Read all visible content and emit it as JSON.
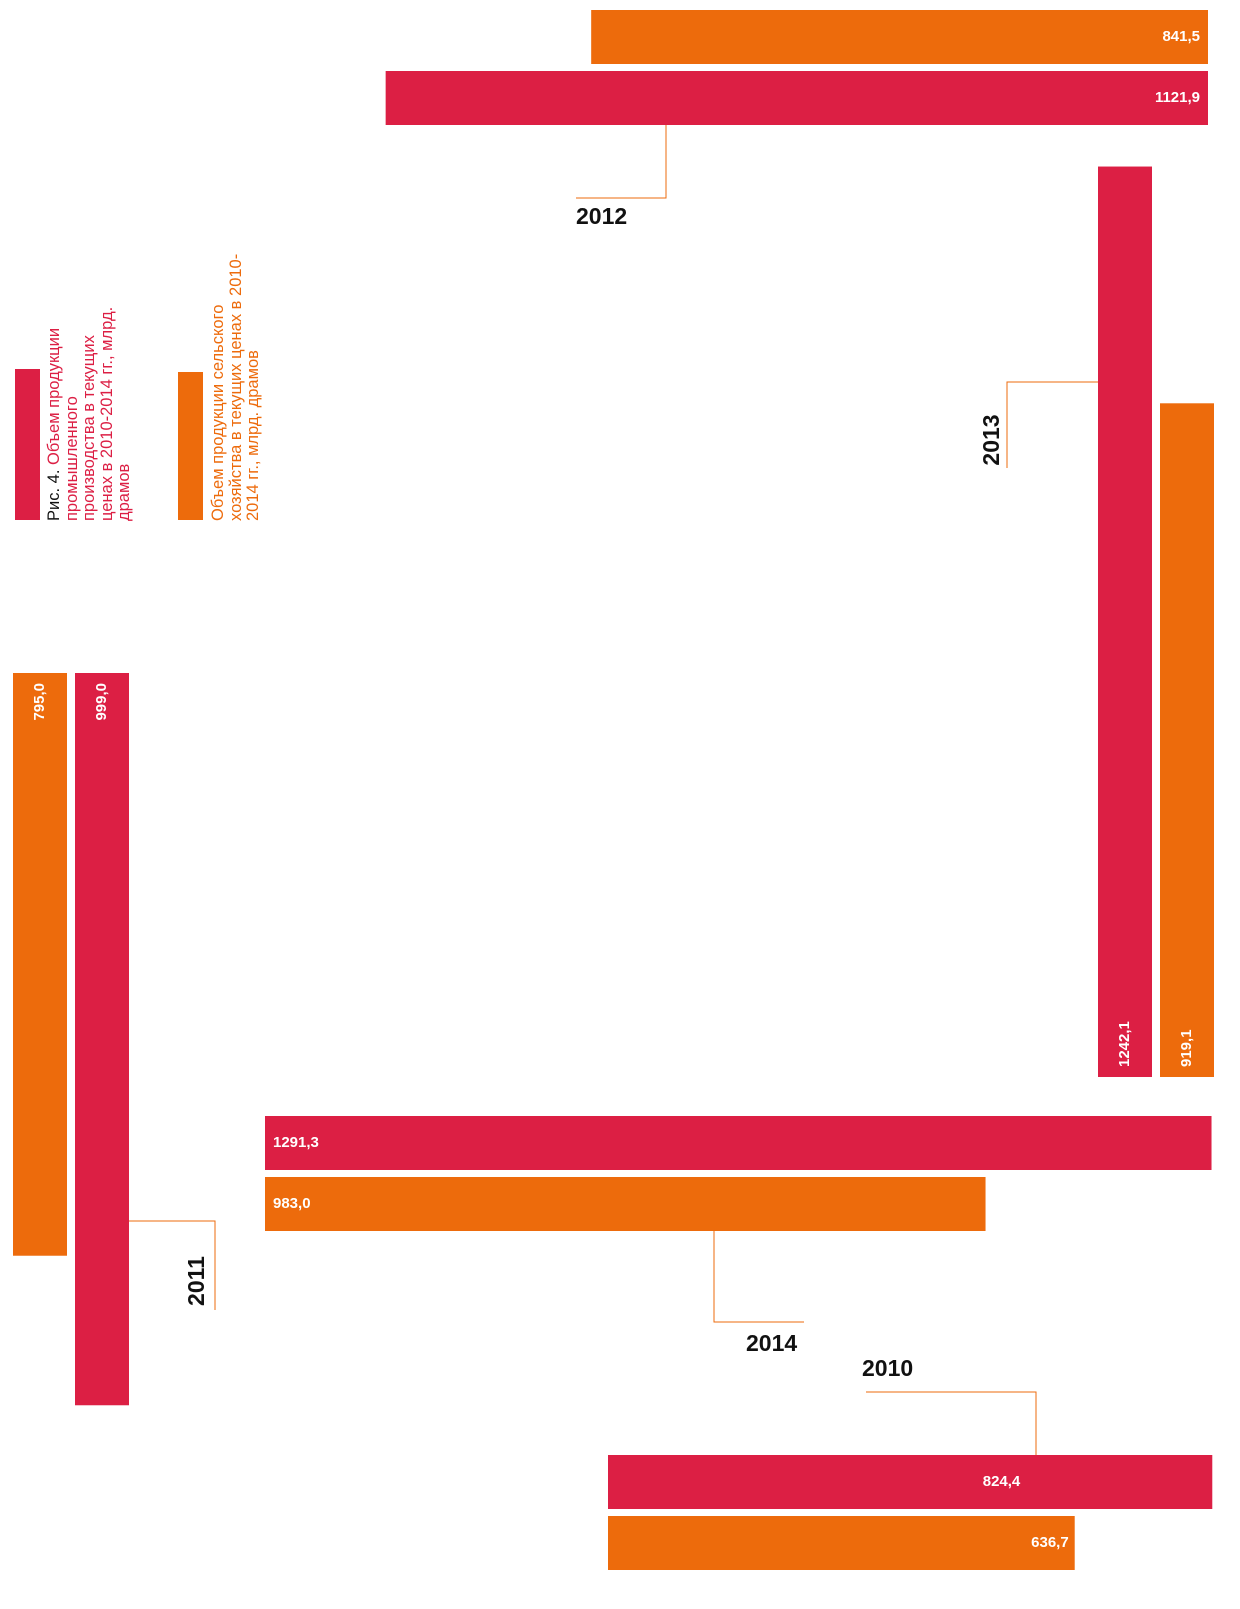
{
  "chart_data": {
    "type": "bar",
    "figure_label": "Рис. 4.",
    "categories": [
      "2010",
      "2011",
      "2012",
      "2013",
      "2014"
    ],
    "series": [
      {
        "name": "Объем продукции промышленного производства в текущих ценах в 2010-2014 гг., млрд. драмов",
        "color": "#dc1f44",
        "values": [
          824.4,
          999.0,
          1121.9,
          1242.1,
          1291.3
        ],
        "value_labels": [
          "824,4",
          "999,0",
          "1121,9",
          "1242,1",
          "1291,3"
        ]
      },
      {
        "name": "Объем продукции сельского хозяйства в текущих ценах в 2010-2014 гг., млрд. драмов",
        "color": "#ed6b0c",
        "values": [
          636.7,
          795.0,
          841.5,
          919.1,
          983.0
        ],
        "value_labels": [
          "636,7",
          "795,0",
          "841,5",
          "919,1",
          "983,0"
        ]
      }
    ]
  }
}
